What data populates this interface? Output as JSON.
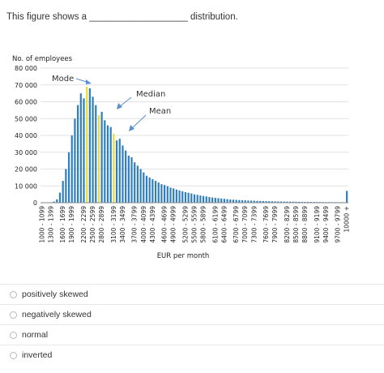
{
  "question": {
    "text": "This figure shows a ___________________ distribution."
  },
  "chart_data": {
    "type": "bar",
    "ylabel": "No. of employees",
    "xlabel": "EUR per month",
    "ylim": [
      0,
      80000
    ],
    "yticks": [
      "0",
      "10 000",
      "20 000",
      "30 000",
      "40 000",
      "50 000",
      "60 000",
      "70 000",
      "80 000"
    ],
    "ytick_values": [
      0,
      10000,
      20000,
      30000,
      40000,
      50000,
      60000,
      70000,
      80000
    ],
    "grid": true,
    "tick_labels": [
      "1000 - 1099",
      "1300 - 1399",
      "1600 - 1699",
      "1900 - 1999",
      "2200 - 2299",
      "2500 - 2599",
      "2800 - 2899",
      "3100 - 3199",
      "3400 - 3499",
      "3700 - 3799",
      "4000 - 4099",
      "4300 - 4399",
      "4600 - 4699",
      "4900 - 4999",
      "5200 - 5299",
      "5500 - 5599",
      "5800 - 5899",
      "6100 - 6199",
      "6400 - 6499",
      "6700 - 6799",
      "7000 - 7099",
      "7300 - 7399",
      "7600 - 7699",
      "7900 - 7999",
      "8200 - 8299",
      "8500 - 8599",
      "8800 - 8899",
      "9100 - 9199",
      "9400 - 9499",
      "9700 - 9799",
      "10000 +"
    ],
    "values": [
      0,
      0,
      0,
      300,
      700,
      2000,
      6000,
      13000,
      20000,
      30000,
      40000,
      50000,
      58000,
      65000,
      62000,
      69000,
      68000,
      63000,
      58000,
      52000,
      54000,
      49000,
      46000,
      45000,
      41000,
      37000,
      38000,
      34000,
      31000,
      28000,
      27000,
      24000,
      22000,
      20000,
      18000,
      16000,
      15000,
      14000,
      13000,
      12000,
      11000,
      10500,
      9800,
      9000,
      8500,
      7800,
      7300,
      6800,
      6300,
      5900,
      5500,
      5000,
      4700,
      4300,
      4000,
      3700,
      3400,
      3100,
      2900,
      2700,
      2500,
      2300,
      2100,
      1900,
      1800,
      1700,
      1600,
      1500,
      1400,
      1300,
      1250,
      1200,
      1100,
      1050,
      1000,
      950,
      900,
      850,
      800,
      760,
      720,
      690,
      660,
      630,
      600,
      570,
      550,
      520,
      500,
      480,
      460,
      440,
      420,
      400,
      380,
      370,
      360,
      350,
      340,
      330,
      320,
      310,
      7000
    ],
    "bar_color": "#2f7fbf",
    "highlight_color": "#e6de3c",
    "highlights": [
      {
        "name": "Mode",
        "index": 15
      },
      {
        "name": "Median",
        "index": 19
      },
      {
        "name": "Mean",
        "index": 24
      }
    ],
    "annotations": [
      "Mode",
      "Median",
      "Mean"
    ]
  },
  "options": [
    {
      "label": "positively skewed"
    },
    {
      "label": "negatively skewed"
    },
    {
      "label": "normal"
    },
    {
      "label": "inverted"
    }
  ]
}
